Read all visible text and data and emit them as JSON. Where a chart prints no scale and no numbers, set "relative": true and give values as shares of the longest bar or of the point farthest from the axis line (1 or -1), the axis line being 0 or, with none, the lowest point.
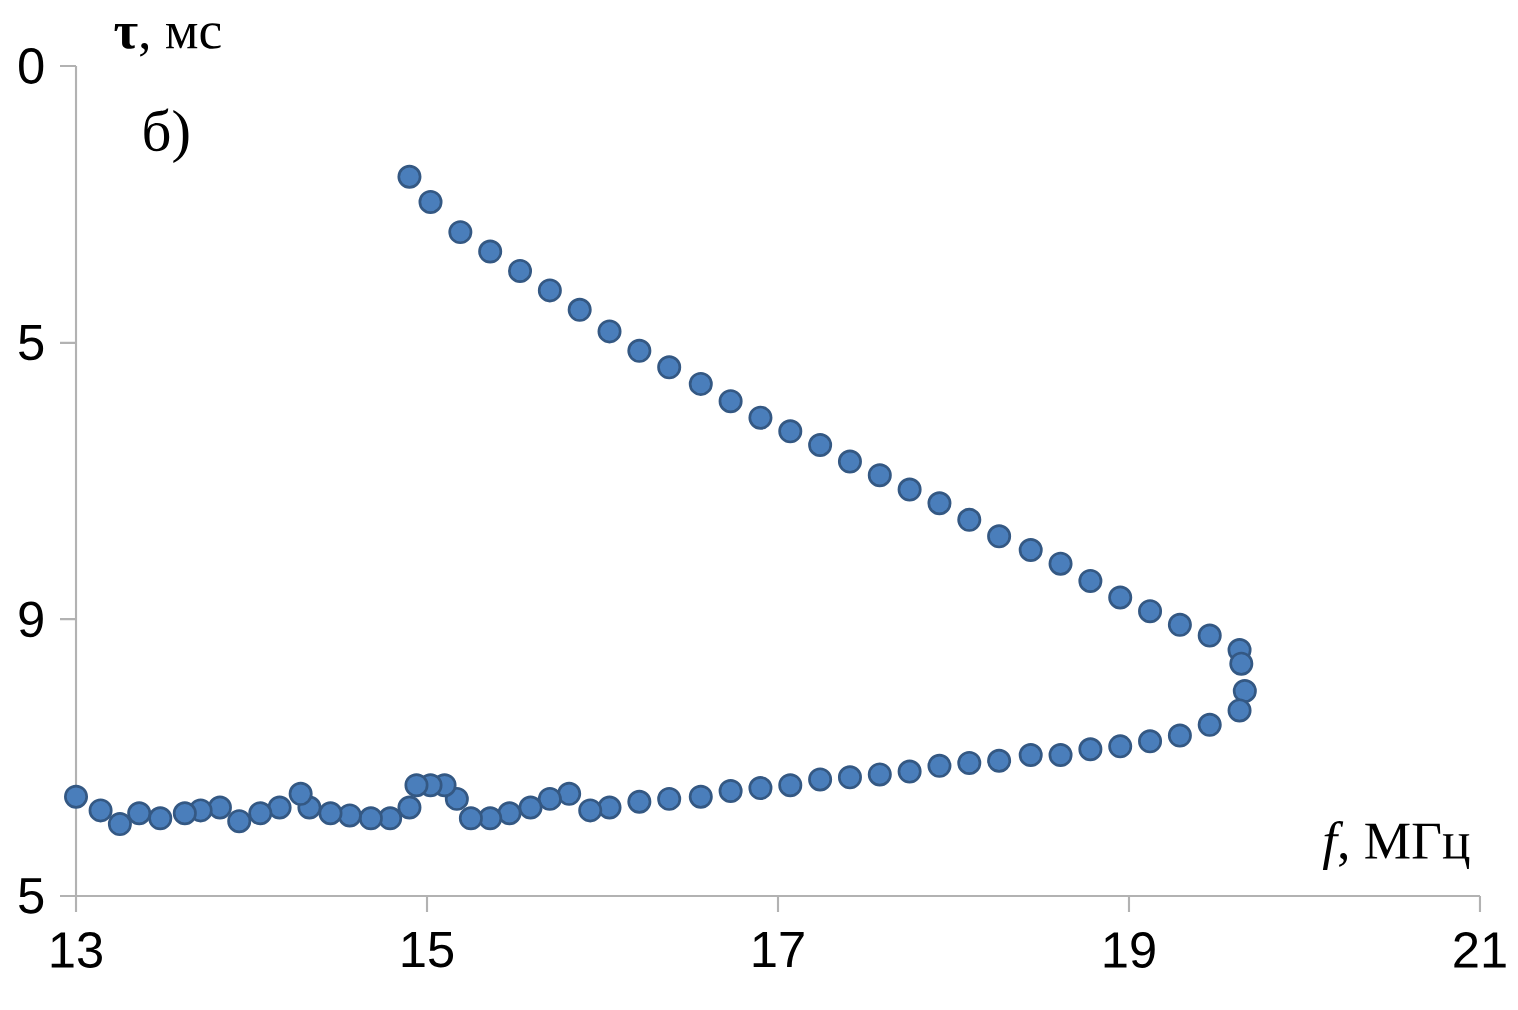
{
  "chart_data": {
    "type": "scatter",
    "xlabel": "*f*, МГц",
    "ylabel": "**τ**, мс",
    "annotations": [
      "б)",
      "0",
      "5",
      "9",
      "5"
    ],
    "relative": true,
    "xlim": [
      13,
      21
    ],
    "xticks": [
      13,
      15,
      17,
      19,
      21
    ],
    "grid": false,
    "marker": "circle",
    "series": [
      {
        "color": "#4a7ebb",
        "x": [
          14.9,
          15.02,
          15.19,
          15.36,
          15.53,
          15.7,
          15.87,
          16.04,
          16.21,
          16.38,
          16.56,
          16.73,
          16.9,
          17.07,
          17.24,
          17.41,
          17.58,
          17.75,
          17.92,
          18.09,
          18.26,
          18.44,
          18.61,
          18.78,
          18.95,
          19.12,
          19.29,
          19.46,
          19.63,
          19.64,
          19.66,
          19.63,
          19.46,
          19.29,
          19.12,
          18.95,
          18.78,
          18.61,
          18.44,
          18.26,
          18.09,
          17.92,
          17.75,
          17.58,
          17.41,
          17.24,
          17.07,
          16.9,
          16.73,
          16.56,
          16.38,
          16.21,
          16.04,
          15.93,
          15.81,
          15.7,
          15.59,
          15.47,
          15.36,
          15.25,
          15.17,
          15.1,
          15.02,
          14.94,
          14.9,
          14.79,
          14.68,
          14.56,
          14.45,
          14.33,
          14.28,
          14.16,
          14.05,
          13.93,
          13.82,
          13.71,
          13.62,
          13.48,
          13.36,
          13.25,
          13.14,
          13.0
        ],
        "values": [
          1.0,
          0.965,
          0.923,
          0.896,
          0.869,
          0.842,
          0.815,
          0.785,
          0.758,
          0.735,
          0.712,
          0.688,
          0.665,
          0.646,
          0.627,
          0.604,
          0.585,
          0.565,
          0.546,
          0.523,
          0.5,
          0.481,
          0.462,
          0.438,
          0.415,
          0.396,
          0.377,
          0.362,
          0.342,
          0.323,
          0.285,
          0.258,
          0.238,
          0.223,
          0.215,
          0.208,
          0.204,
          0.196,
          0.196,
          0.188,
          0.185,
          0.181,
          0.173,
          0.169,
          0.165,
          0.162,
          0.154,
          0.15,
          0.146,
          0.138,
          0.135,
          0.131,
          0.123,
          0.119,
          0.142,
          0.135,
          0.123,
          0.115,
          0.108,
          0.108,
          0.135,
          0.154,
          0.154,
          0.154,
          0.123,
          0.108,
          0.108,
          0.112,
          0.115,
          0.123,
          0.142,
          0.123,
          0.115,
          0.104,
          0.123,
          0.119,
          0.115,
          0.108,
          0.115,
          0.1,
          0.119,
          0.138
        ]
      }
    ]
  }
}
